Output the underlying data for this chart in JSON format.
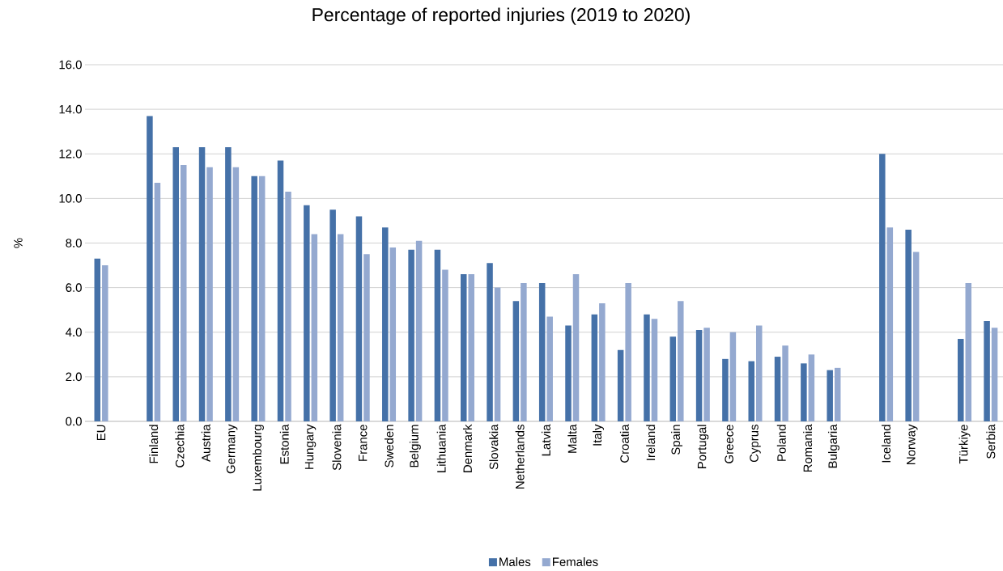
{
  "chart_data": {
    "type": "bar",
    "title": "Percentage of reported injuries (2019 to 2020)",
    "ylabel": "%",
    "categories": [
      "EU",
      null,
      "Finland",
      "Czechia",
      "Austria",
      "Germany",
      "Luxembourg",
      "Estonia",
      "Hungary",
      "Slovenia",
      "France",
      "Sweden",
      "Belgium",
      "Lithuania",
      "Denmark",
      "Slovakia",
      "Netherlands",
      "Latvia",
      "Malta",
      "Italy",
      "Croatia",
      "Ireland",
      "Spain",
      "Portugal",
      "Greece",
      "Cyprus",
      "Poland",
      "Romania",
      "Bulgaria",
      null,
      "Iceland",
      "Norway",
      null,
      "Türkiye",
      "Serbia"
    ],
    "series": [
      {
        "name": "Males",
        "color": "#4571a8",
        "values": [
          7.3,
          null,
          13.7,
          12.3,
          12.3,
          12.3,
          11.0,
          11.7,
          9.7,
          9.5,
          9.2,
          8.7,
          7.7,
          7.7,
          6.6,
          7.1,
          5.4,
          6.2,
          4.3,
          4.8,
          3.2,
          4.8,
          3.8,
          4.1,
          2.8,
          2.7,
          2.9,
          2.6,
          2.3,
          null,
          12.0,
          8.6,
          null,
          3.7,
          4.5
        ]
      },
      {
        "name": "Females",
        "color": "#94a9d0",
        "values": [
          7.0,
          null,
          10.7,
          11.5,
          11.4,
          11.4,
          11.0,
          10.3,
          8.4,
          8.4,
          7.5,
          7.8,
          8.1,
          6.8,
          6.6,
          6.0,
          6.2,
          4.7,
          6.6,
          5.3,
          6.2,
          4.6,
          5.4,
          4.2,
          4.0,
          4.3,
          3.4,
          3.0,
          2.4,
          null,
          8.7,
          7.6,
          null,
          6.2,
          4.2
        ]
      }
    ],
    "ylim": [
      0,
      16
    ],
    "yticks": [
      {
        "value": 0,
        "label": "0.0"
      },
      {
        "value": 2,
        "label": "2.0"
      },
      {
        "value": 4,
        "label": "4.0"
      },
      {
        "value": 6,
        "label": "6.0"
      },
      {
        "value": 8,
        "label": "8.0"
      },
      {
        "value": 10,
        "label": "10.0"
      },
      {
        "value": 12,
        "label": "12.0"
      },
      {
        "value": 14,
        "label": "14.0"
      },
      {
        "value": 16,
        "label": "16.0"
      }
    ],
    "grid": "y",
    "legend": "bottom"
  }
}
